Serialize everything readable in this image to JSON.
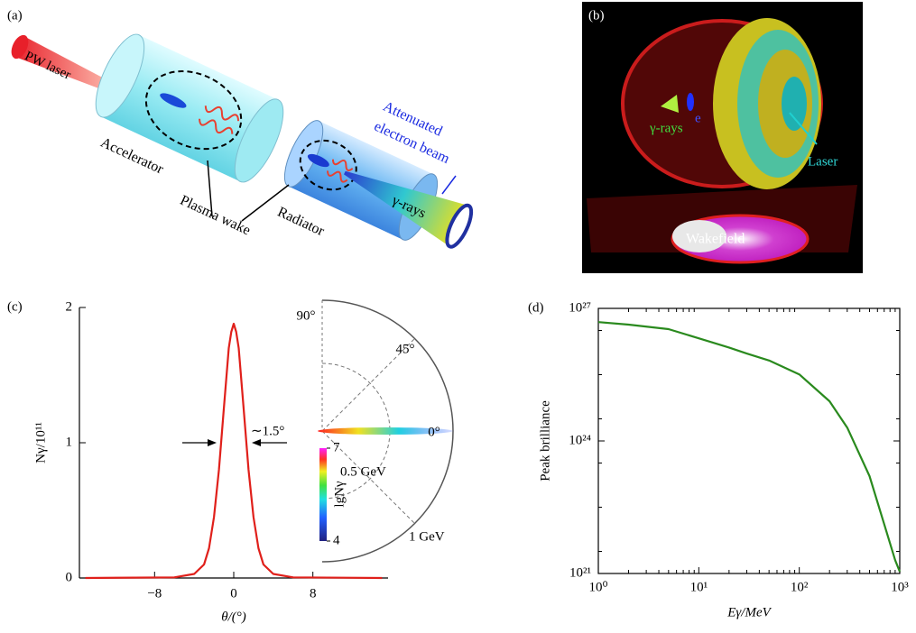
{
  "panels": {
    "a": {
      "label": "(a)",
      "laser": "PW laser",
      "accelerator": "Accelerator",
      "plasma_wake": "Plasma wake",
      "radiator": "Radiator",
      "beam_line1": "Attenuated",
      "beam_line2": "electron beam",
      "gamma": "γ-rays"
    },
    "b": {
      "label": "(b)",
      "gamma": "γ-rays",
      "electron": "e",
      "laser": "Laser",
      "wakefield": "Wakefield"
    }
  },
  "chart_data": [
    {
      "type": "line",
      "panel_label": "(c)",
      "x_label": "θ/(°)",
      "y_label": "Nγ/10¹¹",
      "x": [
        -15,
        -6,
        -4,
        -3,
        -2.5,
        -2,
        -1.5,
        -1,
        -0.5,
        -0.25,
        0,
        0.25,
        0.5,
        1,
        1.5,
        2,
        2.5,
        3,
        4,
        6,
        15
      ],
      "series": [
        {
          "color": "#e0201b",
          "values": [
            0,
            0.005,
            0.03,
            0.1,
            0.22,
            0.45,
            0.8,
            1.25,
            1.7,
            1.82,
            1.88,
            1.82,
            1.7,
            1.25,
            0.8,
            0.45,
            0.22,
            0.1,
            0.03,
            0.005,
            0
          ]
        }
      ],
      "xlim": [
        -15.6,
        15.6
      ],
      "xticks": [
        {
          "value": -8,
          "label": "−8"
        },
        0,
        8
      ],
      "ylim": [
        0,
        2
      ],
      "yticks": [
        0,
        1,
        2
      ],
      "annotation": "∼1.5°",
      "inset": {
        "angle_labels": [
          "90°",
          "45°",
          "0°"
        ],
        "energy_labels": [
          "0.5 GeV",
          "1 GeV"
        ],
        "colorbar_label": "lgNγ",
        "colorbar_ticks": [
          7,
          4
        ]
      }
    },
    {
      "type": "line",
      "panel_label": "(d)",
      "x_label": "Eγ/MeV",
      "y_label": "Peak brilliance",
      "xscale": "log",
      "yscale": "log",
      "x": [
        1,
        2,
        5,
        10,
        20,
        30,
        50,
        100,
        200,
        300,
        500,
        700,
        900,
        1000
      ],
      "series": [
        {
          "color": "#2a8a1e",
          "values": [
            4.9e+26,
            4.3e+26,
            3.4e+26,
            2.1e+26,
            1.3e+26,
            9.5e+25,
            6.6e+25,
            3.2e+25,
            7.9e+24,
            2e+24,
            1.6e+23,
            1.3e+22,
            2e+21,
            1.1e+21
          ]
        }
      ],
      "xlim": [
        1,
        1000
      ],
      "xticks": [
        {
          "value": 1,
          "label": "10⁰"
        },
        {
          "value": 10,
          "label": "10¹"
        },
        {
          "value": 100,
          "label": "10²"
        },
        {
          "value": 1000,
          "label": "10³"
        }
      ],
      "ylim": [
        1e+21,
        1e+27
      ],
      "yticks": [
        {
          "value": 1e+21,
          "label": "10²¹"
        },
        {
          "value": 1e+24,
          "label": "10²⁴"
        },
        {
          "value": 1e+27,
          "label": "10²⁷"
        }
      ]
    }
  ]
}
